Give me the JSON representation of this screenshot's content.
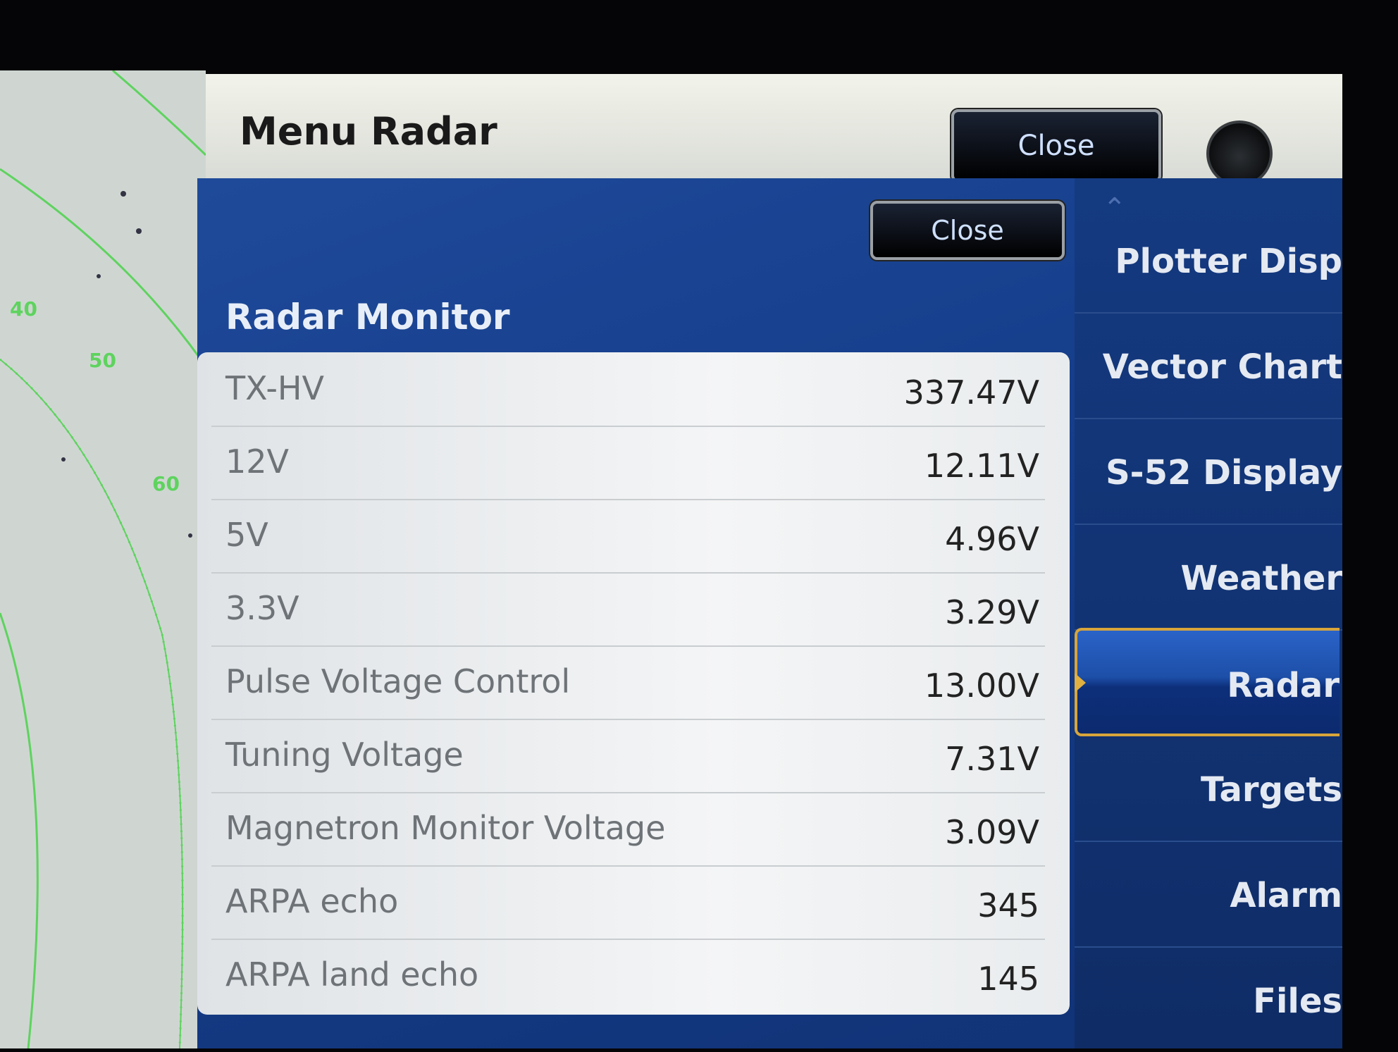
{
  "header": {
    "title": "Menu Radar",
    "close_label": "Close"
  },
  "panel": {
    "title": "Radar Monitor",
    "close_label": "Close"
  },
  "radar_background": {
    "range_labels": [
      "40",
      "50",
      "60"
    ],
    "ring_color": "#5ed35e"
  },
  "monitor_rows": [
    {
      "label": "TX-HV",
      "value": "337.47V"
    },
    {
      "label": "12V",
      "value": "12.11V"
    },
    {
      "label": "5V",
      "value": "4.96V"
    },
    {
      "label": "3.3V",
      "value": "3.29V"
    },
    {
      "label": "Pulse Voltage Control",
      "value": "13.00V"
    },
    {
      "label": "Tuning Voltage",
      "value": "7.31V"
    },
    {
      "label": "Magnetron Monitor Voltage",
      "value": "3.09V"
    },
    {
      "label": "ARPA echo",
      "value": "345"
    },
    {
      "label": "ARPA land echo",
      "value": "145"
    }
  ],
  "nav": {
    "items": [
      "Plotter Disp",
      "Vector Chart",
      "S-52 Display",
      "Weather",
      "Radar",
      "Targets",
      "Alarm",
      "Files"
    ],
    "selected": "Radar",
    "selected_border_color": "#d8a53a"
  }
}
